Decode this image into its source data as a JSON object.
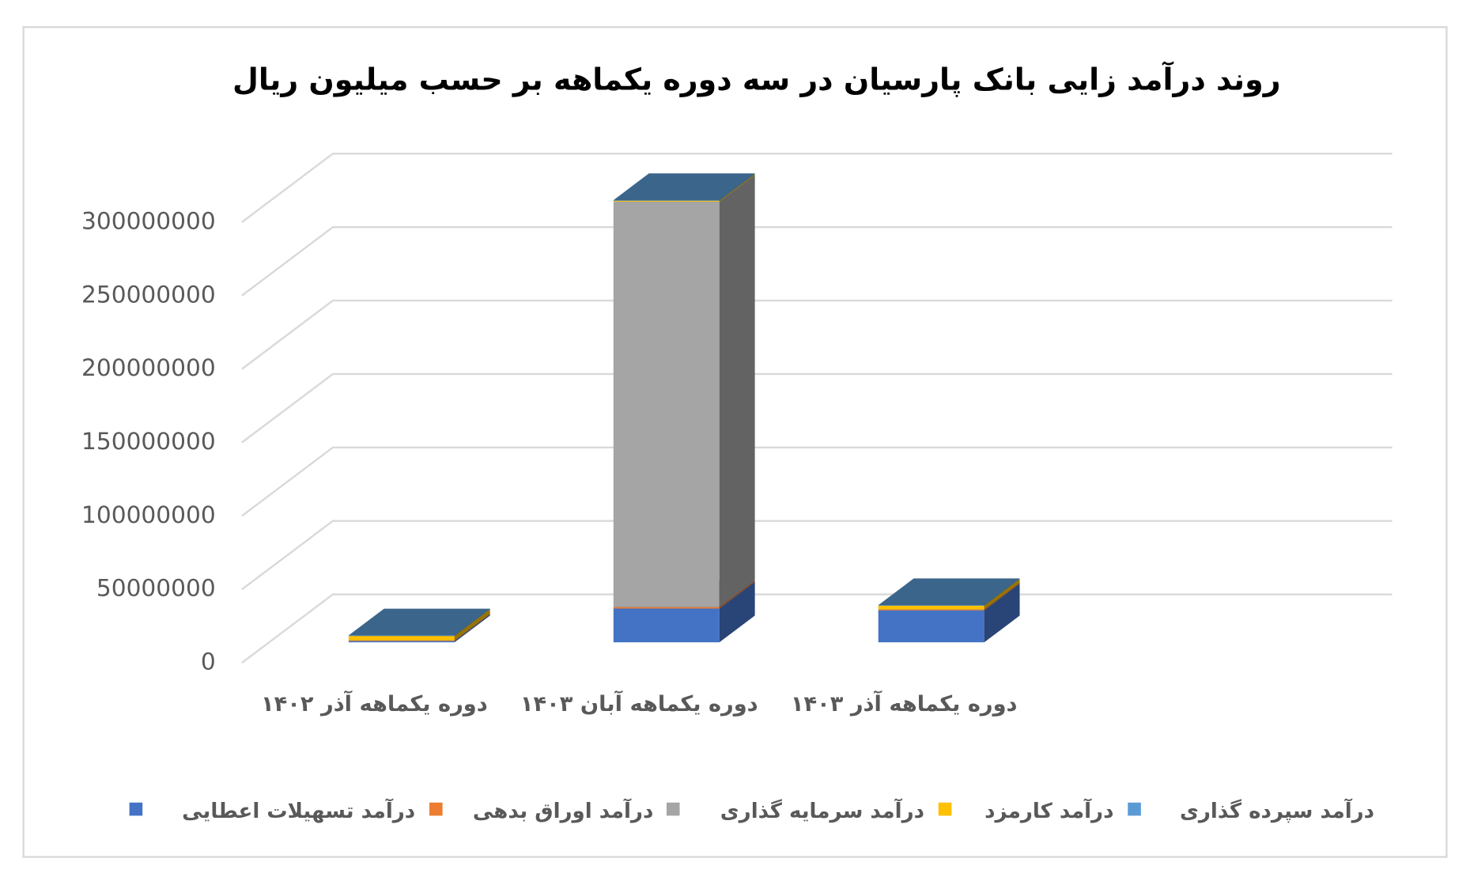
{
  "chart_data": {
    "type": "bar3d-stacked",
    "title": "روند درآمد زایی بانک پارسیان در سه دوره یکماهه بر حسب میلیون ریال",
    "categories": [
      "دوره یکماهه آذر ۱۴۰۲",
      "دوره یکماهه آبان ۱۴۰۳",
      "دوره یکماهه آذر ۱۴۰۳",
      null
    ],
    "series": [
      {
        "name": "درآمد تسهیلات اعطایی",
        "color": "#4472c4",
        "values": [
          800000,
          23000000,
          21700000,
          null
        ]
      },
      {
        "name": "درآمد اوراق بدهی",
        "color": "#ed7d31",
        "values": [
          300000,
          1000000,
          500000,
          null
        ]
      },
      {
        "name": "درآمد سرمایه گذاری",
        "color": "#a5a5a5",
        "values": [
          200000,
          276000000,
          200000,
          null
        ]
      },
      {
        "name": "درآمد کارمزد",
        "color": "#ffc000",
        "values": [
          3000000,
          600000,
          2500000,
          null
        ]
      },
      {
        "name": "درآمد سپرده گذاری",
        "color": "#5b9bd5",
        "values": [
          400000,
          400000,
          400000,
          null
        ]
      }
    ],
    "ylim": [
      0,
      300000000
    ],
    "yticks": [
      0,
      50000000,
      100000000,
      150000000,
      200000000,
      250000000,
      300000000
    ],
    "grid": true
  }
}
